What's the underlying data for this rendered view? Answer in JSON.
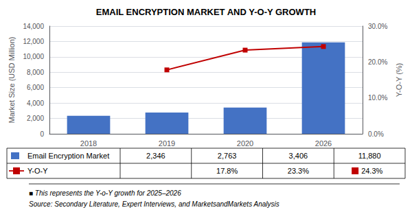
{
  "chart_data": {
    "type": "bar",
    "title": "EMAIL ENCRYPTION MARKET AND Y-O-Y GROWTH",
    "categories": [
      "2018",
      "2019",
      "2020",
      "2026"
    ],
    "series": [
      {
        "name": "Email Encryption Market",
        "type": "bar",
        "color": "#4472C4",
        "values": [
          2346,
          2763,
          3406,
          11880
        ],
        "value_labels": [
          "2,346",
          "2,763",
          "3,406",
          "11,880"
        ]
      },
      {
        "name": "Y-O-Y",
        "type": "line",
        "axis": "y2",
        "color": "#C00000",
        "marker": "square",
        "values": [
          null,
          0.178,
          0.233,
          0.243
        ],
        "value_labels": [
          null,
          "17.8%",
          "23.3%",
          "24.3%"
        ]
      }
    ],
    "ylabel": "Market Size (USD Million)",
    "y2label": "Y-O-Y (%)",
    "ylim": [
      0,
      14000
    ],
    "yticks": [
      0,
      {
        "value": 2000,
        "label": "2,000"
      },
      {
        "value": 4000,
        "label": "4,000"
      },
      {
        "value": 6000,
        "label": "6,000"
      },
      {
        "value": 8000,
        "label": "8,000"
      },
      {
        "value": 10000,
        "label": "10,000"
      },
      {
        "value": 12000,
        "label": "12,000"
      },
      {
        "value": 14000,
        "label": "14,000"
      }
    ],
    "y2lim": [
      0,
      0.3
    ],
    "y2ticks": [
      {
        "value": 0.0,
        "label": "0.0%"
      },
      {
        "value": 0.1,
        "label": "10.0%"
      },
      {
        "value": 0.2,
        "label": "20.0%"
      },
      {
        "value": 0.3,
        "label": "30.0%"
      }
    ],
    "grid": true,
    "annotations": [
      "■ This represents the Y-o-Y growth for 2025–2026",
      "Source: Secondary Literature, Expert Interviews, and MarketsandMarkets Analysis"
    ]
  }
}
